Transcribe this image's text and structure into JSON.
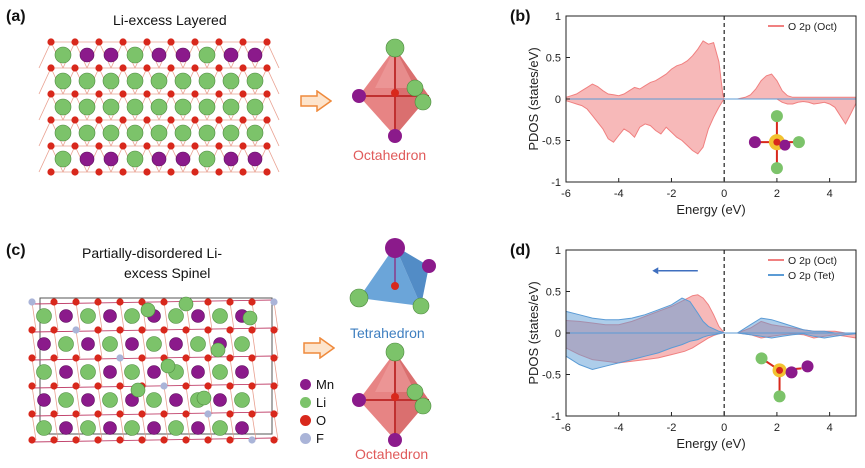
{
  "figure": {
    "panel_a": {
      "letter": "(a)",
      "title": "Li-excess Layered",
      "polyhedron_label": "Octahedron"
    },
    "panel_b": {
      "letter": "(b)",
      "ylabel": "PDOS (states/eV)",
      "xlabel": "Energy (eV)",
      "legend": [
        {
          "label": "O 2p (Oct)",
          "color": "#f08080"
        }
      ]
    },
    "panel_c": {
      "letter": "(c)",
      "title_lines": [
        "Partially-disordered Li-",
        "excess Spinel"
      ],
      "polyhedron_labels": [
        "Tetrahedron",
        "Octahedron"
      ],
      "legend": [
        {
          "label": "Mn",
          "color": "#8b1a8b"
        },
        {
          "label": "Li",
          "color": "#7cc36a"
        },
        {
          "label": "O",
          "color": "#d8281c"
        },
        {
          "label": "F",
          "color": "#aab4d8"
        }
      ]
    },
    "panel_d": {
      "letter": "(d)",
      "ylabel": "PDOS (states/eV)",
      "xlabel": "Energy (eV)",
      "legend": [
        {
          "label": "O 2p (Oct)",
          "color": "#f08080"
        },
        {
          "label": "O 2p (Tet)",
          "color": "#5b9bd5"
        }
      ]
    }
  },
  "chart_data": [
    {
      "id": "b",
      "type": "area",
      "xlabel": "Energy (eV)",
      "ylabel": "PDOS (states/eV)",
      "xlim": [
        -6,
        5
      ],
      "ylim": [
        -1,
        1
      ],
      "xticks": [
        -6,
        -4,
        -2,
        0,
        2,
        4
      ],
      "yticks": [
        -1,
        -0.5,
        0,
        0.5,
        1
      ],
      "fermi_level": 0,
      "grid": false,
      "legend_position": "top-right",
      "series": [
        {
          "name": "O 2p (Oct)",
          "color": "#f08080",
          "x": [
            -6,
            -5.8,
            -5.6,
            -5.4,
            -5.2,
            -5.0,
            -4.8,
            -4.6,
            -4.4,
            -4.2,
            -4.0,
            -3.8,
            -3.6,
            -3.4,
            -3.2,
            -3.0,
            -2.8,
            -2.6,
            -2.4,
            -2.2,
            -2.0,
            -1.8,
            -1.6,
            -1.4,
            -1.2,
            -1.0,
            -0.8,
            -0.6,
            -0.4,
            -0.2,
            -0.05,
            0,
            0.2,
            0.5,
            0.8,
            1.0,
            1.2,
            1.4,
            1.6,
            1.8,
            2.0,
            2.2,
            2.4,
            2.6,
            2.8,
            3.0,
            3.2,
            3.4,
            3.6,
            3.8,
            4.0,
            4.2,
            4.4,
            4.6,
            4.8,
            5.0
          ],
          "up": [
            0.02,
            0.04,
            0.06,
            0.1,
            0.14,
            0.18,
            0.15,
            0.1,
            0.06,
            0.05,
            0.04,
            0.06,
            0.1,
            0.14,
            0.12,
            0.16,
            0.2,
            0.22,
            0.26,
            0.3,
            0.36,
            0.4,
            0.42,
            0.46,
            0.52,
            0.6,
            0.7,
            0.66,
            0.68,
            0.45,
            0.05,
            0.0,
            0.0,
            0.0,
            0.02,
            0.05,
            0.12,
            0.22,
            0.28,
            0.3,
            0.22,
            0.1,
            0.04,
            0.02,
            0.02,
            0.02,
            0.02,
            0.02,
            0.02,
            0.02,
            0.02,
            0.02,
            0.02,
            0.02,
            0.02,
            0.02
          ],
          "down": [
            -0.02,
            -0.04,
            -0.06,
            -0.08,
            -0.12,
            -0.2,
            -0.28,
            -0.36,
            -0.48,
            -0.52,
            -0.44,
            -0.36,
            -0.4,
            -0.46,
            -0.34,
            -0.3,
            -0.32,
            -0.38,
            -0.42,
            -0.34,
            -0.4,
            -0.46,
            -0.5,
            -0.56,
            -0.62,
            -0.66,
            -0.58,
            -0.36,
            -0.22,
            -0.1,
            -0.02,
            0.0,
            0.0,
            0.0,
            0.0,
            0.0,
            0.0,
            0.0,
            0.0,
            0.0,
            0.0,
            -0.04,
            -0.06,
            -0.06,
            -0.04,
            -0.03,
            -0.04,
            -0.06,
            -0.05,
            -0.04,
            -0.06,
            -0.1,
            -0.2,
            -0.3,
            -0.18,
            -0.05
          ]
        }
      ]
    },
    {
      "id": "d",
      "type": "area",
      "xlabel": "Energy (eV)",
      "ylabel": "PDOS (states/eV)",
      "xlim": [
        -6,
        5
      ],
      "ylim": [
        -1,
        1
      ],
      "xticks": [
        -6,
        -4,
        -2,
        0,
        2,
        4
      ],
      "yticks": [
        -1,
        -0.5,
        0,
        0.5,
        1
      ],
      "fermi_level": 0,
      "grid": false,
      "legend_position": "top-right",
      "annotation": "arrow pointing left above valence band",
      "series": [
        {
          "name": "O 2p (Oct)",
          "color": "#f08080",
          "x": [
            -6,
            -5.5,
            -5.0,
            -4.5,
            -4.0,
            -3.5,
            -3.0,
            -2.5,
            -2.0,
            -1.5,
            -1.2,
            -1.0,
            -0.8,
            -0.6,
            -0.4,
            -0.2,
            -0.05,
            0,
            0.5,
            1.0,
            1.4,
            1.8,
            2.2,
            2.6,
            3.0,
            3.4,
            3.8,
            4.2,
            4.6,
            5.0
          ],
          "up": [
            0.15,
            0.14,
            0.12,
            0.1,
            0.1,
            0.14,
            0.2,
            0.26,
            0.32,
            0.4,
            0.45,
            0.46,
            0.42,
            0.34,
            0.22,
            0.08,
            0.02,
            0.0,
            0.0,
            0.06,
            0.14,
            0.1,
            0.08,
            0.06,
            0.04,
            0.02,
            0.02,
            0.02,
            0.0,
            0.0
          ],
          "down": [
            -0.18,
            -0.26,
            -0.32,
            -0.34,
            -0.36,
            -0.34,
            -0.32,
            -0.3,
            -0.26,
            -0.22,
            -0.18,
            -0.14,
            -0.1,
            -0.06,
            -0.03,
            -0.01,
            0.0,
            0.0,
            0.0,
            -0.02,
            -0.06,
            -0.04,
            -0.02,
            -0.01,
            -0.02,
            -0.06,
            -0.04,
            -0.02,
            -0.04,
            -0.06
          ]
        },
        {
          "name": "O 2p (Tet)",
          "color": "#5b9bd5",
          "x": [
            -6,
            -5.5,
            -5.0,
            -4.5,
            -4.0,
            -3.5,
            -3.0,
            -2.5,
            -2.0,
            -1.6,
            -1.3,
            -1.0,
            -0.8,
            -0.6,
            -0.4,
            -0.2,
            -0.05,
            0,
            0.5,
            1.0,
            1.4,
            1.8,
            2.2,
            2.6,
            3.0,
            3.4,
            3.8,
            4.2,
            4.6,
            5.0
          ],
          "up": [
            0.26,
            0.22,
            0.18,
            0.16,
            0.16,
            0.18,
            0.22,
            0.28,
            0.34,
            0.42,
            0.38,
            0.24,
            0.14,
            0.08,
            0.05,
            0.02,
            0.01,
            0.0,
            0.0,
            0.1,
            0.18,
            0.16,
            0.12,
            0.08,
            0.04,
            0.02,
            0.02,
            0.0,
            0.0,
            0.0
          ],
          "down": [
            -0.28,
            -0.38,
            -0.44,
            -0.4,
            -0.36,
            -0.32,
            -0.28,
            -0.24,
            -0.18,
            -0.14,
            -0.1,
            -0.08,
            -0.05,
            -0.03,
            -0.02,
            -0.01,
            0.0,
            0.0,
            0.0,
            -0.02,
            -0.04,
            -0.06,
            -0.04,
            -0.02,
            -0.01,
            -0.04,
            -0.06,
            -0.04,
            -0.02,
            -0.01
          ]
        }
      ]
    }
  ]
}
